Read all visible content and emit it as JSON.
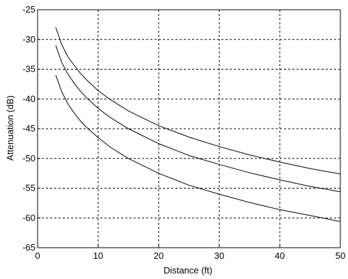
{
  "chart_data": {
    "type": "line",
    "title": "",
    "xlabel": "Distance (ft)",
    "ylabel": "Attenuation (dB)",
    "xlim": [
      0,
      50
    ],
    "ylim": [
      -65,
      -25
    ],
    "xticks": [
      0,
      10,
      20,
      30,
      40,
      50
    ],
    "yticks": [
      -25,
      -30,
      -35,
      -40,
      -45,
      -50,
      -55,
      -60,
      -65
    ],
    "xtick_labels": [
      "0",
      "10",
      "20",
      "30",
      "40",
      "50"
    ],
    "ytick_labels": [
      "-25",
      "-30",
      "-35",
      "-40",
      "-45",
      "-50",
      "-55",
      "-60",
      "-65"
    ],
    "grid": true,
    "line_color": "#000000",
    "series": [
      {
        "x": [
          3,
          4,
          5,
          6,
          7,
          8,
          10,
          12,
          15,
          20,
          25,
          30,
          35,
          40,
          45,
          50
        ],
        "y": [
          -28.0,
          -30.9,
          -32.9,
          -34.3,
          -35.6,
          -36.7,
          -38.6,
          -40.1,
          -42.0,
          -44.5,
          -46.4,
          -48.0,
          -49.4,
          -50.6,
          -51.7,
          -52.6
        ]
      },
      {
        "x": [
          3,
          4,
          5,
          6,
          7,
          8,
          10,
          12,
          15,
          20,
          25,
          30,
          35,
          40,
          45,
          50
        ],
        "y": [
          -31.0,
          -33.9,
          -35.8,
          -37.3,
          -38.6,
          -39.7,
          -41.6,
          -43.1,
          -45.0,
          -47.5,
          -49.5,
          -51.0,
          -52.4,
          -53.6,
          -54.7,
          -55.6
        ]
      },
      {
        "x": [
          3,
          4,
          5,
          6,
          7,
          8,
          10,
          12,
          15,
          20,
          25,
          30,
          35,
          40,
          45,
          50
        ],
        "y": [
          -36.0,
          -38.8,
          -40.8,
          -42.3,
          -43.6,
          -44.7,
          -46.5,
          -48.1,
          -50.0,
          -52.5,
          -54.5,
          -56.0,
          -57.4,
          -58.6,
          -59.6,
          -60.6
        ]
      }
    ]
  }
}
